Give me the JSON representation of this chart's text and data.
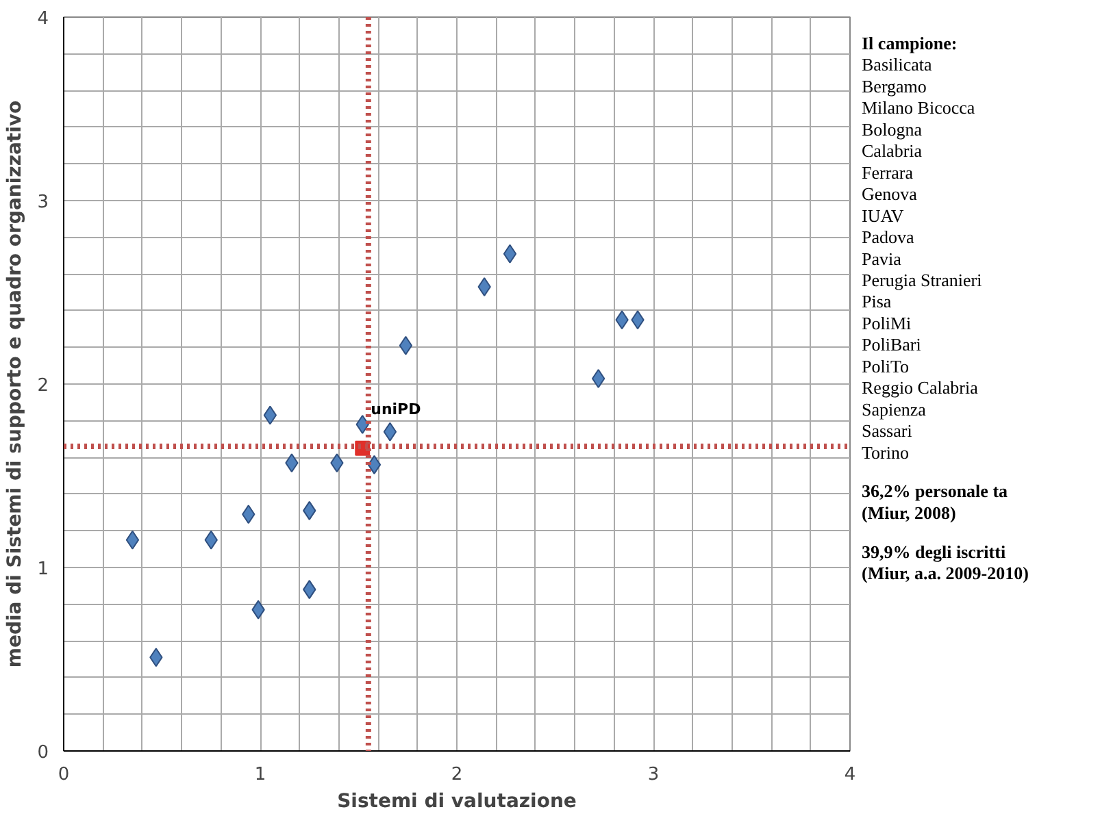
{
  "chart_data": {
    "type": "scatter",
    "xlabel": "Sistemi di valutazione",
    "ylabel": "media di Sistemi di supporto e quadro organizzativo",
    "xlim": [
      0,
      4
    ],
    "ylim": [
      0,
      4
    ],
    "xticks": [
      0,
      {
        "value": 0.2,
        "label": null
      },
      {
        "value": 0.4,
        "label": null
      },
      {
        "value": 0.6,
        "label": null
      },
      {
        "value": 0.8,
        "label": null
      },
      1,
      {
        "value": 1.2,
        "label": null
      },
      {
        "value": 1.4,
        "label": null
      },
      {
        "value": 1.6,
        "label": null
      },
      {
        "value": 1.8,
        "label": null
      },
      2,
      {
        "value": 2.2,
        "label": null
      },
      {
        "value": 2.4,
        "label": null
      },
      {
        "value": 2.6,
        "label": null
      },
      {
        "value": 2.8,
        "label": null
      },
      3,
      {
        "value": 3.2,
        "label": null
      },
      {
        "value": 3.4,
        "label": null
      },
      {
        "value": 3.6,
        "label": null
      },
      {
        "value": 3.8,
        "label": null
      },
      4
    ],
    "yticks": [
      0,
      {
        "value": 0.2,
        "label": null
      },
      {
        "value": 0.4,
        "label": null
      },
      {
        "value": 0.6,
        "label": null
      },
      {
        "value": 0.8,
        "label": null
      },
      1,
      {
        "value": 1.2,
        "label": null
      },
      {
        "value": 1.4,
        "label": null
      },
      {
        "value": 1.6,
        "label": null
      },
      {
        "value": 1.8,
        "label": null
      },
      2,
      {
        "value": 2.2,
        "label": null
      },
      {
        "value": 2.4,
        "label": null
      },
      {
        "value": 2.6,
        "label": null
      },
      {
        "value": 2.8,
        "label": null
      },
      3,
      {
        "value": 3.2,
        "label": null
      },
      {
        "value": 3.4,
        "label": null
      },
      {
        "value": 3.6,
        "label": null
      },
      {
        "value": 3.8,
        "label": null
      },
      4
    ],
    "grid": true,
    "series": [
      {
        "color": "#4f81bd",
        "marker": "diamond",
        "x": [
          2.27,
          2.14,
          2.84,
          2.92,
          2.72,
          1.74,
          1.05,
          1.52,
          1.66,
          1.16,
          1.39,
          1.58,
          0.94,
          1.25,
          0.35,
          0.75,
          1.25,
          0.99,
          0.47
        ],
        "values": [
          2.71,
          2.53,
          2.35,
          2.35,
          2.03,
          2.21,
          1.83,
          1.78,
          1.74,
          1.57,
          1.57,
          1.56,
          1.29,
          1.31,
          1.15,
          1.15,
          0.88,
          0.77,
          0.51
        ]
      },
      {
        "name": "uniPD",
        "color": "#e0302a",
        "marker": "square",
        "x": [
          1.52
        ],
        "values": [
          1.65
        ]
      }
    ],
    "ref_lines": [
      {
        "axis": "x",
        "value": 1.55,
        "color": "#c0504d",
        "line_style": "dotted"
      },
      {
        "axis": "y",
        "value": 1.66,
        "color": "#c0504d",
        "line_style": "dotted"
      }
    ],
    "annotations": [
      "Il campione:",
      "Basilicata",
      "Bergamo",
      "Milano Bicocca",
      "Bologna",
      "Calabria",
      "Ferrara",
      "Genova",
      "IUAV",
      "Padova",
      "Pavia",
      "Perugia Stranieri",
      "Pisa",
      "PoliMi",
      "PoliBari",
      "PoliTo",
      "Reggio Calabria",
      "Sapienza",
      "Sassari",
      "Torino",
      "36,2% personale ta\n(Miur, 2008)",
      "39,9% degli iscritti\n(Miur, a.a. 2009-2010)"
    ]
  }
}
